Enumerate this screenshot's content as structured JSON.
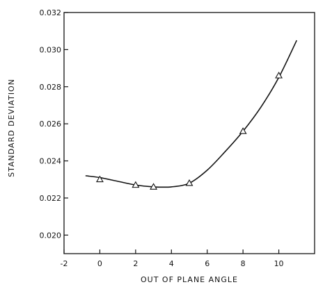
{
  "chart_data": {
    "type": "scatter",
    "xlabel": "OUT OF PLANE ANGLE",
    "ylabel": "STANDARD DEVIATION",
    "xlim": [
      -2,
      12
    ],
    "ylim": [
      0.019,
      0.032
    ],
    "x_ticks": [
      -2,
      0,
      2,
      4,
      6,
      8,
      10
    ],
    "x_tick_labels": [
      "-2",
      "0",
      "2",
      "4",
      "6",
      "8",
      "10"
    ],
    "y_ticks": [
      0.02,
      0.022,
      0.024,
      0.026,
      0.028,
      0.03,
      0.032
    ],
    "y_tick_labels": [
      "0.020",
      "0.022",
      "0.024",
      "0.026",
      "0.028",
      "0.030",
      "0.032"
    ],
    "grid": false,
    "marker": "triangle-open",
    "series": [
      {
        "points": [
          {
            "x": 0,
            "y": 0.023
          },
          {
            "x": 2,
            "y": 0.0227
          },
          {
            "x": 3,
            "y": 0.0226
          },
          {
            "x": 5,
            "y": 0.0228
          },
          {
            "x": 8,
            "y": 0.0256
          },
          {
            "x": 10,
            "y": 0.0286
          }
        ]
      }
    ],
    "fit_curve": {
      "x": [
        -0.8,
        0,
        1,
        2,
        3,
        4,
        5,
        6,
        7,
        8,
        9,
        10,
        11
      ],
      "y": [
        0.0232,
        0.0231,
        0.0229,
        0.0227,
        0.0226,
        0.0226,
        0.0228,
        0.0235,
        0.0245,
        0.0256,
        0.0269,
        0.0285,
        0.0305
      ]
    }
  }
}
